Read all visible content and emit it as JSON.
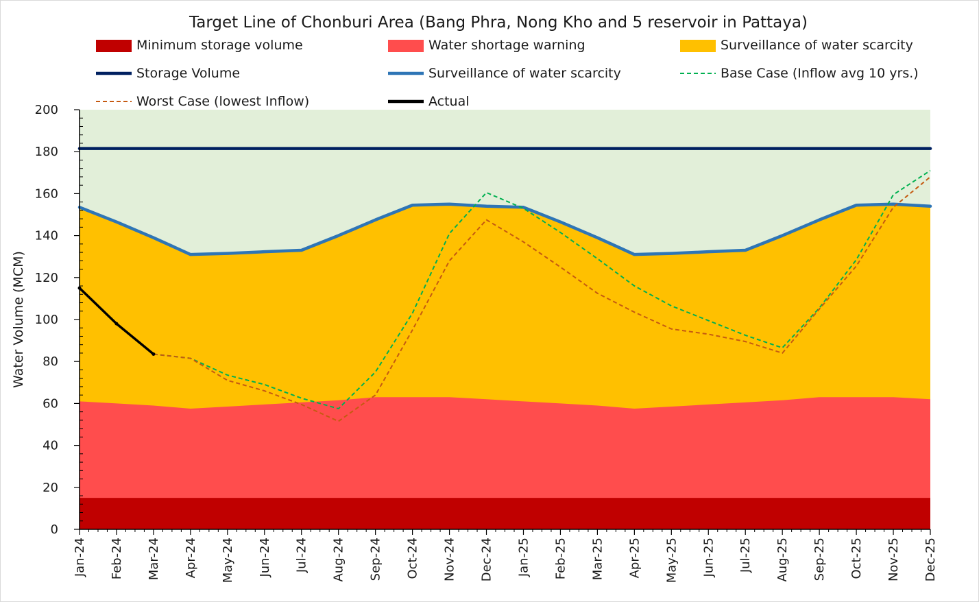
{
  "chart_data": {
    "type": "area",
    "title": "Target Line of Chonburi Area (Bang Phra, Nong Kho and 5 reservoir in Pattaya)",
    "ylabel": "Water Volume (MCM)",
    "xlabel": "",
    "ylim": [
      0,
      200
    ],
    "yticks": [
      0,
      20,
      40,
      60,
      80,
      100,
      120,
      140,
      160,
      180,
      200
    ],
    "categories": [
      "Jan-24",
      "Feb-24",
      "Mar-24",
      "Apr-24",
      "May-24",
      "Jun-24",
      "Jul-24",
      "Aug-24",
      "Sep-24",
      "Oct-24",
      "Nov-24",
      "Dec-24",
      "Jan-25",
      "Feb-25",
      "Mar-25",
      "Apr-25",
      "May-25",
      "Jun-25",
      "Jul-25",
      "Aug-25",
      "Sep-25",
      "Oct-25",
      "Nov-25",
      "Dec-25"
    ],
    "grid": false,
    "legend_position": "top",
    "background_color": "#e2efd9",
    "bands": [
      {
        "name": "Minimum storage volume",
        "color": "#c00000",
        "values": [
          15,
          15,
          15,
          15,
          15,
          15,
          15,
          15,
          15,
          15,
          15,
          15,
          15,
          15,
          15,
          15,
          15,
          15,
          15,
          15,
          15,
          15,
          15,
          15
        ]
      },
      {
        "name": "Water shortage warning",
        "color": "#ff4d4d",
        "values": [
          61,
          60,
          59,
          57.5,
          58.5,
          59.5,
          60.5,
          61.5,
          63,
          63,
          63,
          62,
          61,
          60,
          59,
          57.5,
          58.5,
          59.5,
          60.5,
          61.5,
          63,
          63,
          63,
          62
        ]
      },
      {
        "name": "Surveillance of water scarcity",
        "color": "#ffc000",
        "values": [
          153.5,
          146.5,
          139,
          131,
          131.5,
          132.3,
          133,
          140,
          147.5,
          154.5,
          155,
          154,
          153.5,
          146.5,
          139,
          131,
          131.5,
          132.3,
          133,
          140,
          147.5,
          154.5,
          155,
          154
        ]
      }
    ],
    "series": [
      {
        "name": "Storage Volume",
        "color": "#002060",
        "style": "solid",
        "values": [
          181.5,
          181.5,
          181.5,
          181.5,
          181.5,
          181.5,
          181.5,
          181.5,
          181.5,
          181.5,
          181.5,
          181.5,
          181.5,
          181.5,
          181.5,
          181.5,
          181.5,
          181.5,
          181.5,
          181.5,
          181.5,
          181.5,
          181.5,
          181.5
        ]
      },
      {
        "name": "Surveillance of water scarcity",
        "color": "#2e75b6",
        "style": "solid",
        "values": [
          153.5,
          146.5,
          139,
          131,
          131.5,
          132.3,
          133,
          140,
          147.5,
          154.5,
          155,
          154,
          153.5,
          146.5,
          139,
          131,
          131.5,
          132.3,
          133,
          140,
          147.5,
          154.5,
          155,
          154
        ]
      },
      {
        "name": "Base Case (Inflow avg 10 yrs.)",
        "color": "#00b050",
        "style": "dashed",
        "values": [
          null,
          null,
          83.5,
          81.5,
          73.5,
          69,
          62.5,
          57.5,
          75,
          103,
          141,
          160.5,
          153,
          141.5,
          129,
          116,
          106.5,
          99.5,
          92.5,
          86.5,
          105.5,
          128.5,
          159.5,
          171
        ]
      },
      {
        "name": "Worst Case (lowest Inflow)",
        "color": "#c55a11",
        "style": "dashed",
        "values": [
          null,
          null,
          83.5,
          81.5,
          71,
          66,
          59.5,
          51.5,
          64,
          95,
          128,
          147.5,
          137,
          125,
          112.5,
          103.5,
          95.5,
          93,
          89.5,
          84,
          105,
          125.5,
          153.5,
          168
        ]
      },
      {
        "name": "Actual",
        "color": "#000000",
        "style": "solid",
        "values": [
          115,
          98,
          83.5,
          null,
          null,
          null,
          null,
          null,
          null,
          null,
          null,
          null,
          null,
          null,
          null,
          null,
          null,
          null,
          null,
          null,
          null,
          null,
          null,
          null
        ]
      }
    ]
  },
  "legend": {
    "items": [
      {
        "label": "Minimum storage volume",
        "kind": "box",
        "color": "#c00000"
      },
      {
        "label": "Water shortage warning",
        "kind": "box",
        "color": "#ff4d4d"
      },
      {
        "label": "Surveillance of water scarcity",
        "kind": "box",
        "color": "#ffc000"
      },
      {
        "label": "Storage Volume",
        "kind": "line",
        "color": "#002060",
        "style": "solid"
      },
      {
        "label": "Surveillance of water scarcity",
        "kind": "line",
        "color": "#2e75b6",
        "style": "solid"
      },
      {
        "label": "Base Case (Inflow avg 10 yrs.)",
        "kind": "line",
        "color": "#00b050",
        "style": "dashed"
      },
      {
        "label": "Worst Case (lowest Inflow)",
        "kind": "line",
        "color": "#c55a11",
        "style": "dashed"
      },
      {
        "label": "Actual",
        "kind": "line",
        "color": "#000000",
        "style": "solid"
      }
    ]
  }
}
